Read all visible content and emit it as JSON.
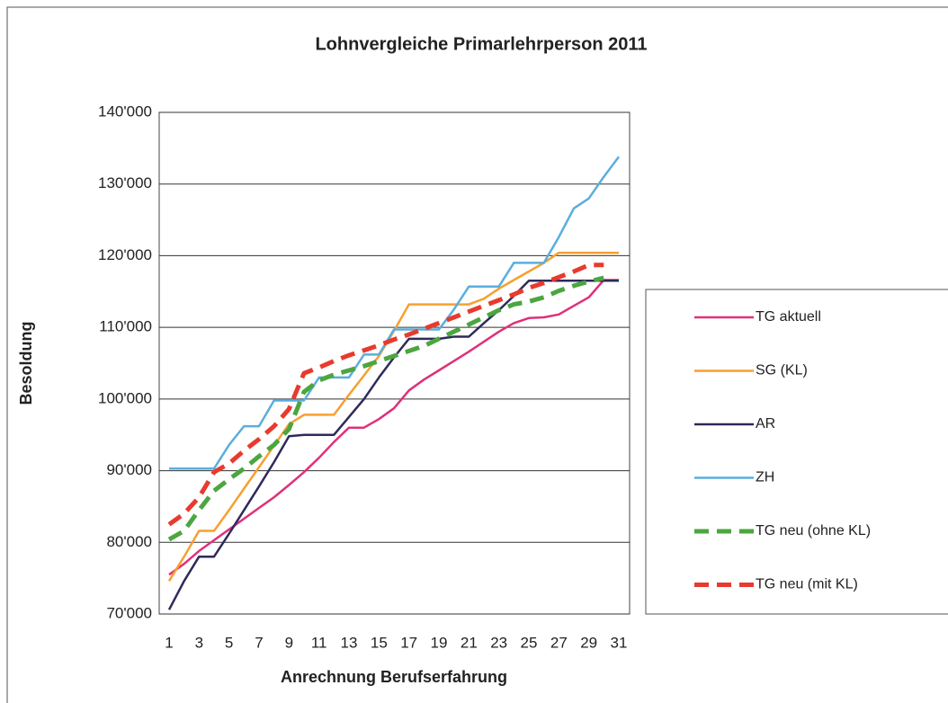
{
  "chart_data": {
    "type": "line",
    "title": "Lohnvergleiche Primarlehrperson 2011",
    "x_label": "Anrechnung Berufserfahrung",
    "y_label": "Besoldung",
    "categories": [
      "1",
      null,
      "3",
      null,
      "5",
      null,
      "7",
      null,
      "9",
      null,
      "11",
      null,
      "13",
      null,
      "15",
      null,
      "17",
      null,
      "19",
      null,
      "21",
      null,
      "23",
      null,
      "25",
      null,
      "27",
      null,
      "29",
      null,
      "31"
    ],
    "ylim": [
      70000,
      140000
    ],
    "yticks": [
      {
        "value": 70000,
        "label": "70'000"
      },
      {
        "value": 80000,
        "label": "80'000"
      },
      {
        "value": 90000,
        "label": "90'000"
      },
      {
        "value": 100000,
        "label": "100'000"
      },
      {
        "value": 110000,
        "label": "110'000"
      },
      {
        "value": 120000,
        "label": "120'000"
      },
      {
        "value": 130000,
        "label": "130'000"
      },
      {
        "value": 140000,
        "label": "140'000"
      }
    ],
    "grid": true,
    "legend": "right",
    "series": [
      {
        "name": "TG aktuell",
        "color": "#e0307a",
        "dashed": false,
        "values": [
          75500,
          77000,
          78800,
          80300,
          81800,
          83300,
          84800,
          86300,
          88000,
          89800,
          91800,
          94000,
          96000,
          96000,
          97200,
          98700,
          101200,
          102700,
          104000,
          105300,
          106600,
          108000,
          109400,
          110600,
          111300,
          111400,
          111800,
          113000,
          114200,
          116600,
          116600
        ]
      },
      {
        "name": "SG (KL)",
        "color": "#f7a030",
        "dashed": false,
        "values": [
          74600,
          78000,
          81600,
          81600,
          84500,
          87500,
          90500,
          93500,
          96500,
          97800,
          97800,
          97800,
          100600,
          103300,
          106000,
          109500,
          113200,
          113200,
          113200,
          113200,
          113200,
          114000,
          115400,
          116600,
          117800,
          119000,
          120400,
          120400,
          120400,
          120400,
          120400
        ]
      },
      {
        "name": "AR",
        "color": "#2e2a5a",
        "dashed": false,
        "values": [
          70600,
          74600,
          78000,
          78000,
          81200,
          84500,
          87800,
          91200,
          94800,
          95000,
          95000,
          95000,
          97500,
          100000,
          103000,
          105800,
          108400,
          108400,
          108400,
          108700,
          108700,
          110600,
          112400,
          114400,
          116500,
          116500,
          116500,
          116500,
          116500,
          116500,
          116500
        ]
      },
      {
        "name": "ZH",
        "color": "#5aaedc",
        "dashed": false,
        "values": [
          90300,
          90300,
          90300,
          90300,
          93600,
          96200,
          96200,
          99800,
          99800,
          99800,
          103000,
          103000,
          103000,
          106200,
          106200,
          109700,
          109700,
          109700,
          109700,
          112500,
          115700,
          115700,
          115700,
          119000,
          119000,
          119000,
          122600,
          126600,
          128000,
          131000,
          133800
        ]
      },
      {
        "name": "TG neu (ohne KL)",
        "color": "#4ca640",
        "dashed": true,
        "values": [
          80400,
          81600,
          84500,
          87200,
          88800,
          90300,
          92000,
          93600,
          95800,
          101000,
          102600,
          103400,
          104000,
          104600,
          105300,
          106000,
          106700,
          107400,
          108400,
          109400,
          110400,
          111400,
          112400,
          113200,
          113600,
          114200,
          115100,
          115800,
          116400,
          116900,
          null
        ]
      },
      {
        "name": "TG neu (mit KL)",
        "color": "#e83a2e",
        "dashed": true,
        "values": [
          82500,
          84000,
          86300,
          89800,
          91000,
          92800,
          94400,
          96200,
          98600,
          103600,
          104400,
          105300,
          106100,
          106800,
          107500,
          108300,
          109000,
          109800,
          110600,
          111400,
          112200,
          113000,
          113800,
          114600,
          115500,
          116200,
          117000,
          117800,
          118700,
          118700,
          null
        ]
      }
    ]
  }
}
